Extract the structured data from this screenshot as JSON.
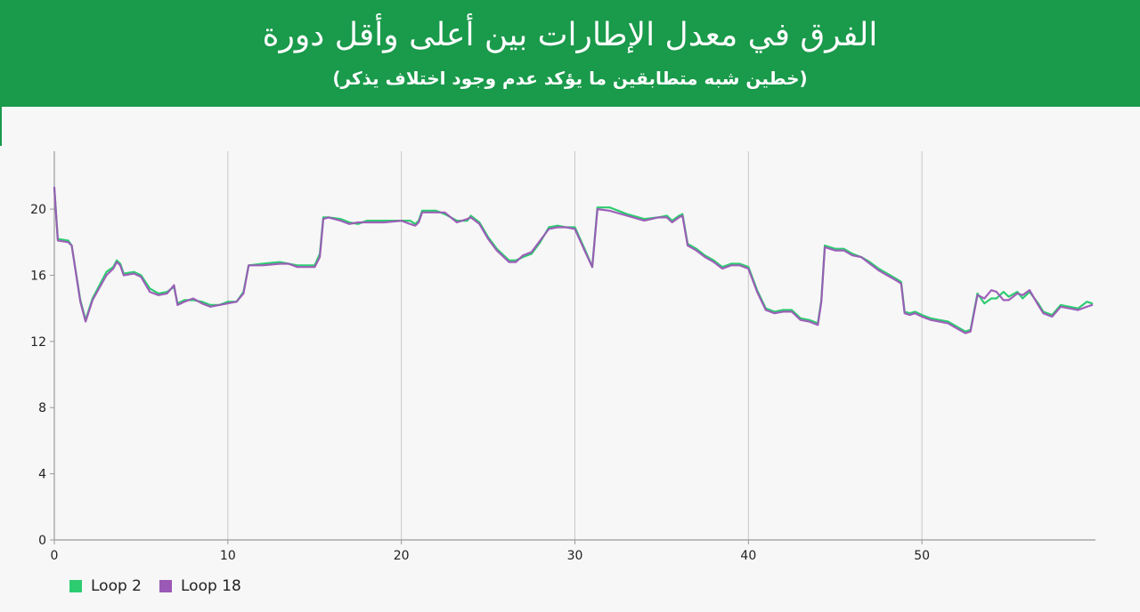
{
  "header": {
    "title": "الفرق في معدل الإطارات بين أعلى وأقل دورة",
    "subtitle": "(خطين شبه متطابقين ما يؤكد عدم وجود اختلاف يذكر)"
  },
  "colors": {
    "header_bg": "#1a9a4b",
    "series_1": "#2ecc71",
    "series_2": "#9b59b6"
  },
  "chart_data": {
    "type": "line",
    "xlim": [
      0,
      60
    ],
    "ylim": [
      0,
      23.5
    ],
    "x_ticks": [
      0,
      10,
      20,
      30,
      40,
      50
    ],
    "y_ticks": [
      0,
      4,
      8,
      12,
      16,
      20
    ],
    "grid": "vertical",
    "legend": "bottom-left",
    "series": [
      {
        "name": "Loop 2",
        "color": "#2ecc71",
        "points": [
          [
            0,
            21.3
          ],
          [
            0.2,
            18.2
          ],
          [
            0.8,
            18.1
          ],
          [
            1.0,
            17.8
          ],
          [
            1.5,
            14.5
          ],
          [
            1.8,
            13.3
          ],
          [
            2.2,
            14.6
          ],
          [
            3.0,
            16.2
          ],
          [
            3.4,
            16.5
          ],
          [
            3.6,
            16.9
          ],
          [
            3.8,
            16.7
          ],
          [
            4.0,
            16.1
          ],
          [
            4.6,
            16.2
          ],
          [
            5.0,
            16.0
          ],
          [
            5.5,
            15.2
          ],
          [
            6.0,
            14.9
          ],
          [
            6.5,
            15.0
          ],
          [
            6.9,
            15.3
          ],
          [
            7.1,
            14.3
          ],
          [
            7.5,
            14.5
          ],
          [
            8.0,
            14.5
          ],
          [
            8.5,
            14.4
          ],
          [
            9.0,
            14.2
          ],
          [
            9.5,
            14.2
          ],
          [
            10.0,
            14.4
          ],
          [
            10.5,
            14.4
          ],
          [
            10.9,
            15.0
          ],
          [
            11.2,
            16.6
          ],
          [
            12.0,
            16.7
          ],
          [
            13.0,
            16.8
          ],
          [
            13.5,
            16.7
          ],
          [
            14.0,
            16.6
          ],
          [
            15.0,
            16.6
          ],
          [
            15.3,
            17.3
          ],
          [
            15.5,
            19.5
          ],
          [
            15.8,
            19.5
          ],
          [
            16.5,
            19.4
          ],
          [
            17.0,
            19.2
          ],
          [
            17.5,
            19.1
          ],
          [
            18.0,
            19.3
          ],
          [
            19.0,
            19.3
          ],
          [
            20.0,
            19.3
          ],
          [
            20.5,
            19.3
          ],
          [
            20.8,
            19.1
          ],
          [
            21.0,
            19.3
          ],
          [
            21.2,
            19.9
          ],
          [
            22.0,
            19.9
          ],
          [
            22.5,
            19.7
          ],
          [
            23.2,
            19.3
          ],
          [
            23.8,
            19.3
          ],
          [
            24.0,
            19.6
          ],
          [
            24.5,
            19.2
          ],
          [
            25.0,
            18.3
          ],
          [
            25.5,
            17.6
          ],
          [
            26.2,
            16.9
          ],
          [
            26.6,
            16.9
          ],
          [
            27.0,
            17.1
          ],
          [
            27.5,
            17.3
          ],
          [
            28.0,
            18.0
          ],
          [
            28.5,
            18.9
          ],
          [
            29.0,
            19.0
          ],
          [
            29.5,
            18.9
          ],
          [
            30.0,
            18.9
          ],
          [
            30.6,
            17.5
          ],
          [
            31.0,
            16.5
          ],
          [
            31.3,
            20.1
          ],
          [
            32.0,
            20.1
          ],
          [
            33.0,
            19.7
          ],
          [
            34.0,
            19.4
          ],
          [
            34.8,
            19.5
          ],
          [
            35.3,
            19.6
          ],
          [
            35.6,
            19.3
          ],
          [
            36.0,
            19.6
          ],
          [
            36.2,
            19.7
          ],
          [
            36.5,
            17.9
          ],
          [
            37.0,
            17.6
          ],
          [
            37.5,
            17.2
          ],
          [
            38.0,
            16.9
          ],
          [
            38.5,
            16.5
          ],
          [
            39.0,
            16.7
          ],
          [
            39.5,
            16.7
          ],
          [
            40.0,
            16.5
          ],
          [
            40.5,
            15.1
          ],
          [
            41.0,
            14.0
          ],
          [
            41.5,
            13.8
          ],
          [
            42.0,
            13.9
          ],
          [
            42.5,
            13.9
          ],
          [
            43.0,
            13.4
          ],
          [
            43.5,
            13.3
          ],
          [
            44.0,
            13.1
          ],
          [
            44.2,
            14.5
          ],
          [
            44.4,
            17.8
          ],
          [
            45.0,
            17.6
          ],
          [
            45.5,
            17.6
          ],
          [
            46.0,
            17.3
          ],
          [
            46.5,
            17.1
          ],
          [
            47.0,
            16.8
          ],
          [
            47.5,
            16.4
          ],
          [
            48.0,
            16.1
          ],
          [
            48.5,
            15.8
          ],
          [
            48.8,
            15.6
          ],
          [
            49.0,
            13.8
          ],
          [
            49.3,
            13.7
          ],
          [
            49.6,
            13.8
          ],
          [
            50.0,
            13.6
          ],
          [
            50.5,
            13.4
          ],
          [
            51.0,
            13.3
          ],
          [
            51.5,
            13.2
          ],
          [
            52.0,
            12.9
          ],
          [
            52.5,
            12.6
          ],
          [
            52.8,
            12.7
          ],
          [
            53.2,
            14.9
          ],
          [
            53.6,
            14.3
          ],
          [
            54.0,
            14.6
          ],
          [
            54.3,
            14.6
          ],
          [
            54.7,
            15.0
          ],
          [
            55.0,
            14.7
          ],
          [
            55.5,
            15.0
          ],
          [
            55.8,
            14.6
          ],
          [
            56.2,
            15.0
          ],
          [
            56.7,
            14.3
          ],
          [
            57.0,
            13.8
          ],
          [
            57.5,
            13.6
          ],
          [
            58.0,
            14.2
          ],
          [
            58.5,
            14.1
          ],
          [
            59.0,
            14.0
          ],
          [
            59.5,
            14.4
          ],
          [
            59.8,
            14.3
          ]
        ]
      },
      {
        "name": "Loop 18",
        "color": "#9b59b6",
        "points": [
          [
            0,
            21.3
          ],
          [
            0.2,
            18.1
          ],
          [
            0.8,
            18.0
          ],
          [
            1.0,
            17.8
          ],
          [
            1.5,
            14.4
          ],
          [
            1.8,
            13.2
          ],
          [
            2.2,
            14.5
          ],
          [
            3.0,
            16.0
          ],
          [
            3.4,
            16.4
          ],
          [
            3.6,
            16.8
          ],
          [
            3.8,
            16.6
          ],
          [
            4.0,
            16.0
          ],
          [
            4.6,
            16.1
          ],
          [
            5.0,
            15.9
          ],
          [
            5.5,
            15.0
          ],
          [
            6.0,
            14.8
          ],
          [
            6.5,
            14.9
          ],
          [
            6.9,
            15.4
          ],
          [
            7.1,
            14.2
          ],
          [
            7.5,
            14.4
          ],
          [
            8.0,
            14.6
          ],
          [
            8.5,
            14.3
          ],
          [
            9.0,
            14.1
          ],
          [
            9.5,
            14.2
          ],
          [
            10.0,
            14.3
          ],
          [
            10.5,
            14.4
          ],
          [
            10.9,
            14.9
          ],
          [
            11.2,
            16.6
          ],
          [
            12.0,
            16.6
          ],
          [
            13.0,
            16.7
          ],
          [
            13.5,
            16.7
          ],
          [
            14.0,
            16.5
          ],
          [
            15.0,
            16.5
          ],
          [
            15.3,
            17.1
          ],
          [
            15.5,
            19.4
          ],
          [
            15.8,
            19.5
          ],
          [
            16.5,
            19.3
          ],
          [
            17.0,
            19.1
          ],
          [
            17.5,
            19.2
          ],
          [
            18.0,
            19.2
          ],
          [
            19.0,
            19.2
          ],
          [
            20.0,
            19.3
          ],
          [
            20.5,
            19.1
          ],
          [
            20.8,
            19.0
          ],
          [
            21.0,
            19.2
          ],
          [
            21.2,
            19.8
          ],
          [
            22.0,
            19.8
          ],
          [
            22.5,
            19.8
          ],
          [
            23.2,
            19.2
          ],
          [
            23.8,
            19.4
          ],
          [
            24.0,
            19.5
          ],
          [
            24.5,
            19.1
          ],
          [
            25.0,
            18.2
          ],
          [
            25.5,
            17.5
          ],
          [
            26.2,
            16.8
          ],
          [
            26.6,
            16.8
          ],
          [
            27.0,
            17.2
          ],
          [
            27.5,
            17.4
          ],
          [
            28.0,
            18.1
          ],
          [
            28.5,
            18.8
          ],
          [
            29.0,
            18.9
          ],
          [
            29.5,
            18.9
          ],
          [
            30.0,
            18.8
          ],
          [
            30.6,
            17.4
          ],
          [
            31.0,
            16.5
          ],
          [
            31.3,
            20.0
          ],
          [
            32.0,
            19.9
          ],
          [
            33.0,
            19.6
          ],
          [
            34.0,
            19.3
          ],
          [
            34.8,
            19.5
          ],
          [
            35.3,
            19.5
          ],
          [
            35.6,
            19.2
          ],
          [
            36.0,
            19.5
          ],
          [
            36.2,
            19.6
          ],
          [
            36.5,
            17.8
          ],
          [
            37.0,
            17.5
          ],
          [
            37.5,
            17.1
          ],
          [
            38.0,
            16.8
          ],
          [
            38.5,
            16.4
          ],
          [
            39.0,
            16.6
          ],
          [
            39.5,
            16.6
          ],
          [
            40.0,
            16.4
          ],
          [
            40.5,
            15.0
          ],
          [
            41.0,
            13.9
          ],
          [
            41.5,
            13.7
          ],
          [
            42.0,
            13.8
          ],
          [
            42.5,
            13.8
          ],
          [
            43.0,
            13.3
          ],
          [
            43.5,
            13.2
          ],
          [
            44.0,
            13.0
          ],
          [
            44.2,
            14.4
          ],
          [
            44.4,
            17.7
          ],
          [
            45.0,
            17.5
          ],
          [
            45.5,
            17.5
          ],
          [
            46.0,
            17.2
          ],
          [
            46.5,
            17.1
          ],
          [
            47.0,
            16.7
          ],
          [
            47.5,
            16.3
          ],
          [
            48.0,
            16.0
          ],
          [
            48.5,
            15.7
          ],
          [
            48.8,
            15.5
          ],
          [
            49.0,
            13.7
          ],
          [
            49.3,
            13.6
          ],
          [
            49.6,
            13.7
          ],
          [
            50.0,
            13.5
          ],
          [
            50.5,
            13.3
          ],
          [
            51.0,
            13.2
          ],
          [
            51.5,
            13.1
          ],
          [
            52.0,
            12.8
          ],
          [
            52.5,
            12.5
          ],
          [
            52.8,
            12.6
          ],
          [
            53.2,
            14.8
          ],
          [
            53.6,
            14.6
          ],
          [
            54.0,
            15.1
          ],
          [
            54.3,
            15.0
          ],
          [
            54.7,
            14.5
          ],
          [
            55.0,
            14.5
          ],
          [
            55.5,
            14.9
          ],
          [
            55.8,
            14.8
          ],
          [
            56.2,
            15.1
          ],
          [
            56.7,
            14.2
          ],
          [
            57.0,
            13.7
          ],
          [
            57.5,
            13.5
          ],
          [
            58.0,
            14.1
          ],
          [
            58.5,
            14.0
          ],
          [
            59.0,
            13.9
          ],
          [
            59.5,
            14.1
          ],
          [
            59.8,
            14.2
          ]
        ]
      }
    ]
  }
}
